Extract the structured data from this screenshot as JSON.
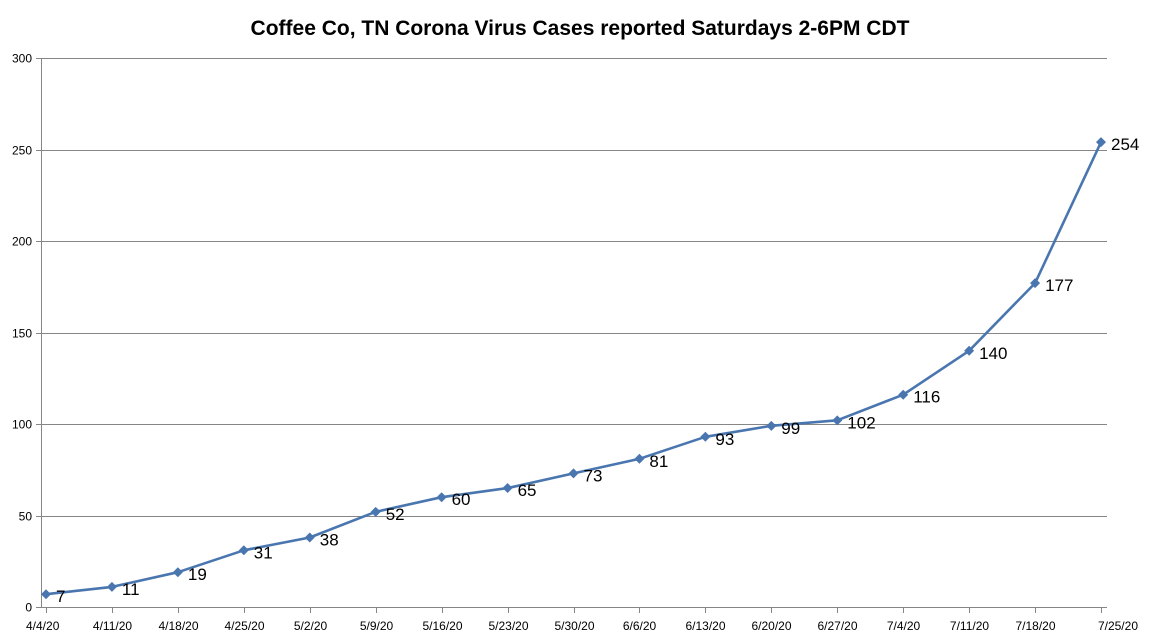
{
  "chart_data": {
    "type": "line",
    "title": "Coffee Co, TN Corona Virus Cases reported Saturdays 2-6PM CDT",
    "xlabel": "",
    "ylabel": "",
    "categories": [
      "4/4/20",
      "4/11/20",
      "4/18/20",
      "4/25/20",
      "5/2/20",
      "5/9/20",
      "5/16/20",
      "5/23/20",
      "5/30/20",
      "6/6/20",
      "6/13/20",
      "6/20/20",
      "6/27/20",
      "7/4/20",
      "7/11/20",
      "7/18/20",
      "7/25/20"
    ],
    "series": [
      {
        "values": [
          7,
          11,
          19,
          31,
          38,
          52,
          60,
          65,
          73,
          81,
          93,
          99,
          102,
          116,
          140,
          177,
          254
        ],
        "color": "#4a76b0",
        "marker": "diamond"
      }
    ],
    "data_labels": [
      "7",
      "11",
      "19",
      "31",
      "38",
      "52",
      "60",
      "65",
      "73",
      "81",
      "93",
      "99",
      "102",
      "116",
      "140",
      "177",
      "254"
    ],
    "ylim": [
      0,
      300
    ],
    "yticks": [
      0,
      50,
      100,
      150,
      200,
      250,
      300
    ],
    "ytick_labels": [
      "0",
      "50",
      "100",
      "150",
      "200",
      "250",
      "300"
    ],
    "grid": "horizontal",
    "gridline_color": "#868686",
    "axis_color": "#868686",
    "legend": "none"
  }
}
